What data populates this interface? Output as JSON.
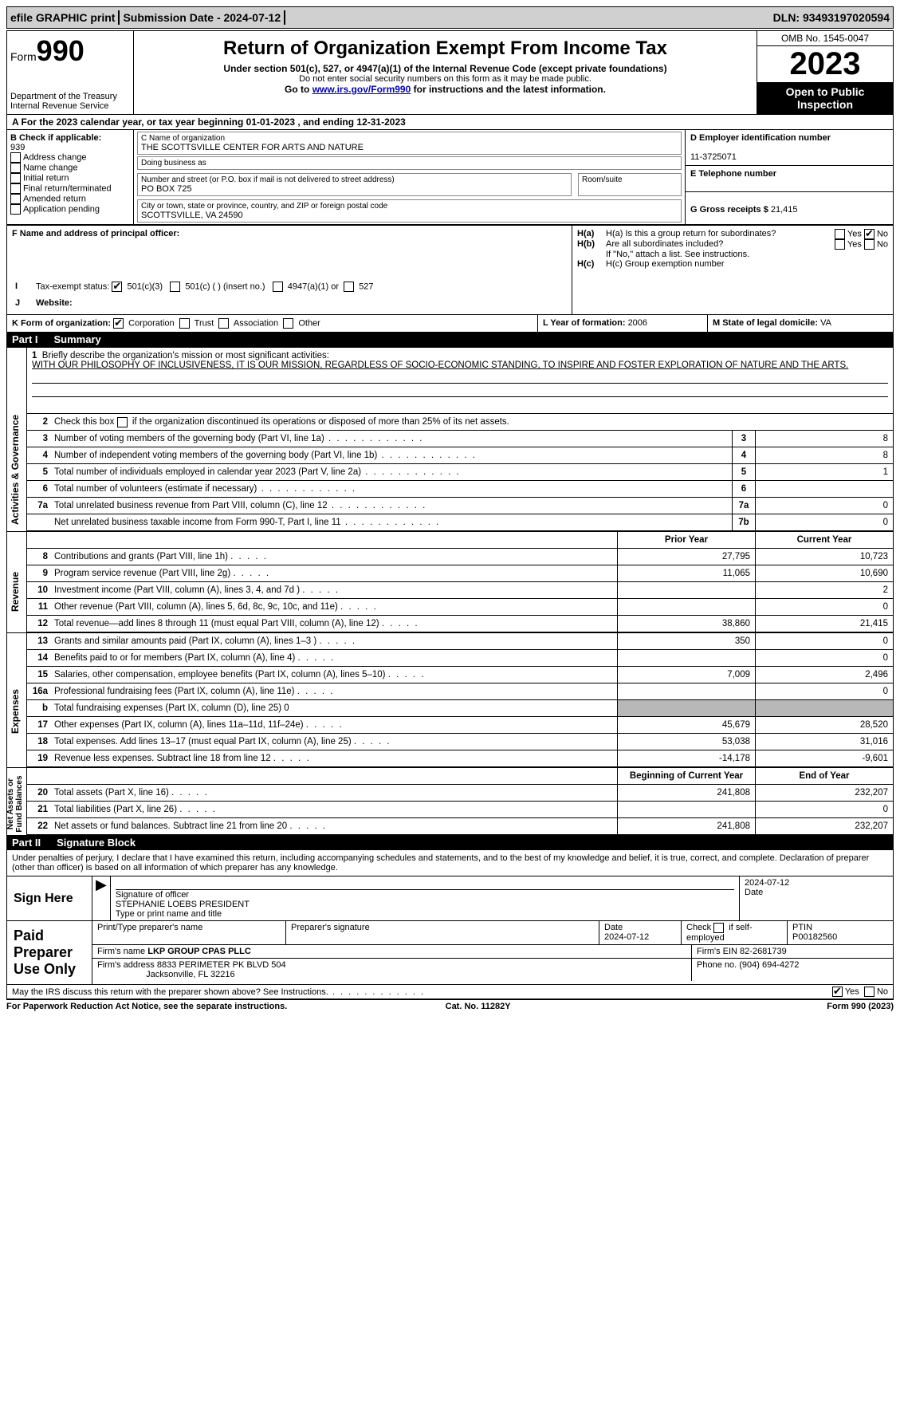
{
  "topbar": {
    "efile": "efile GRAPHIC print",
    "submission": "Submission Date - 2024-07-12",
    "dln": "DLN: 93493197020594"
  },
  "header": {
    "form_word": "Form",
    "form_num": "990",
    "dept": "Department of the Treasury\nInternal Revenue Service",
    "title": "Return of Organization Exempt From Income Tax",
    "subtitle": "Under section 501(c), 527, or 4947(a)(1) of the Internal Revenue Code (except private foundations)",
    "warn": "Do not enter social security numbers on this form as it may be made public.",
    "goto_pre": "Go to ",
    "goto_link": "www.irs.gov/Form990",
    "goto_post": " for instructions and the latest information.",
    "omb": "OMB No. 1545-0047",
    "year": "2023",
    "open": "Open to Public Inspection"
  },
  "row_a": {
    "pre": "A For the 2023 calendar year, or tax year beginning ",
    "begin": "01-01-2023",
    "mid": " , and ending ",
    "end": "12-31-2023"
  },
  "col_b": {
    "title": "B Check if applicable:",
    "items": [
      "Address change",
      "Name change",
      "Initial return",
      "Final return/terminated",
      "Amended return",
      "Application pending"
    ]
  },
  "org": {
    "name_lbl": "C Name of organization",
    "name": "THE SCOTTSVILLE CENTER FOR ARTS AND NATURE",
    "dba_lbl": "Doing business as",
    "dba": "",
    "addr_lbl": "Number and street (or P.O. box if mail is not delivered to street address)",
    "addr": "PO BOX 725",
    "room_lbl": "Room/suite",
    "room": "",
    "city_lbl": "City or town, state or province, country, and ZIP or foreign postal code",
    "city": "SCOTTSVILLE, VA  24590"
  },
  "right": {
    "d_lbl": "D Employer identification number",
    "d_val": "11-3725071",
    "e_lbl": "E Telephone number",
    "e_val": "",
    "g_lbl": "G Gross receipts $ ",
    "g_val": "21,415"
  },
  "row_f": {
    "f_lbl": "F  Name and address of principal officer:",
    "ha": "H(a)  Is this a group return for subordinates?",
    "hb": "H(b)  Are all subordinates included?",
    "hb_note": "If \"No,\" attach a list. See instructions.",
    "hc": "H(c)  Group exemption number ",
    "yes": "Yes",
    "no": "No"
  },
  "row_i": {
    "lbl": "Tax-exempt status:",
    "o1": "501(c)(3)",
    "o2": "501(c) (   ) (insert no.)",
    "o3": "4947(a)(1) or",
    "o4": "527"
  },
  "row_j": {
    "lbl": "Website: "
  },
  "row_klm": {
    "k_lbl": "K Form of organization:",
    "k_opts": [
      "Corporation",
      "Trust",
      "Association",
      "Other"
    ],
    "l_lbl": "L Year of formation: ",
    "l_val": "2006",
    "m_lbl": "M State of legal domicile: ",
    "m_val": "VA"
  },
  "part1": {
    "num": "Part I",
    "title": "Summary"
  },
  "vtabs": {
    "gov": "Activities & Governance",
    "rev": "Revenue",
    "exp": "Expenses",
    "net": "Net Assets or\nFund Balances"
  },
  "summary": {
    "l1_lbl": "Briefly describe the organization's mission or most significant activities:",
    "l1_text": "WITH OUR PHILOSOPHY OF INCLUSIVENESS, IT IS OUR MISSION, REGARDLESS OF SOCIO-ECONOMIC STANDING, TO INSPIRE AND FOSTER EXPLORATION OF NATURE AND THE ARTS.",
    "l2": "Check this box          if the organization discontinued its operations or disposed of more than 25% of its net assets.",
    "rows_top": [
      {
        "n": "3",
        "t": "Number of voting members of the governing body (Part VI, line 1a)",
        "nb": "3",
        "v": "8"
      },
      {
        "n": "4",
        "t": "Number of independent voting members of the governing body (Part VI, line 1b)",
        "nb": "4",
        "v": "8"
      },
      {
        "n": "5",
        "t": "Total number of individuals employed in calendar year 2023 (Part V, line 2a)",
        "nb": "5",
        "v": "1"
      },
      {
        "n": "6",
        "t": "Total number of volunteers (estimate if necessary)",
        "nb": "6",
        "v": ""
      },
      {
        "n": "7a",
        "t": "Total unrelated business revenue from Part VIII, column (C), line 12",
        "nb": "7a",
        "v": "0"
      },
      {
        "n": "",
        "t": "Net unrelated business taxable income from Form 990-T, Part I, line 11",
        "nb": "7b",
        "v": "0"
      }
    ],
    "hdr_prior": "Prior Year",
    "hdr_curr": "Current Year",
    "rev_rows": [
      {
        "n": "8",
        "t": "Contributions and grants (Part VIII, line 1h)",
        "p": "27,795",
        "c": "10,723"
      },
      {
        "n": "9",
        "t": "Program service revenue (Part VIII, line 2g)",
        "p": "11,065",
        "c": "10,690"
      },
      {
        "n": "10",
        "t": "Investment income (Part VIII, column (A), lines 3, 4, and 7d )",
        "p": "",
        "c": "2"
      },
      {
        "n": "11",
        "t": "Other revenue (Part VIII, column (A), lines 5, 6d, 8c, 9c, 10c, and 11e)",
        "p": "",
        "c": "0"
      },
      {
        "n": "12",
        "t": "Total revenue—add lines 8 through 11 (must equal Part VIII, column (A), line 12)",
        "p": "38,860",
        "c": "21,415"
      }
    ],
    "exp_rows": [
      {
        "n": "13",
        "t": "Grants and similar amounts paid (Part IX, column (A), lines 1–3 )",
        "p": "350",
        "c": "0"
      },
      {
        "n": "14",
        "t": "Benefits paid to or for members (Part IX, column (A), line 4)",
        "p": "",
        "c": "0"
      },
      {
        "n": "15",
        "t": "Salaries, other compensation, employee benefits (Part IX, column (A), lines 5–10)",
        "p": "7,009",
        "c": "2,496"
      },
      {
        "n": "16a",
        "t": "Professional fundraising fees (Part IX, column (A), line 11e)",
        "p": "",
        "c": "0"
      },
      {
        "n": "b",
        "t": "Total fundraising expenses (Part IX, column (D), line 25) 0",
        "p": "grey",
        "c": "grey"
      },
      {
        "n": "17",
        "t": "Other expenses (Part IX, column (A), lines 11a–11d, 11f–24e)",
        "p": "45,679",
        "c": "28,520"
      },
      {
        "n": "18",
        "t": "Total expenses. Add lines 13–17 (must equal Part IX, column (A), line 25)",
        "p": "53,038",
        "c": "31,016"
      },
      {
        "n": "19",
        "t": "Revenue less expenses. Subtract line 18 from line 12",
        "p": "-14,178",
        "c": "-9,601"
      }
    ],
    "hdr_begin": "Beginning of Current Year",
    "hdr_end": "End of Year",
    "net_rows": [
      {
        "n": "20",
        "t": "Total assets (Part X, line 16)",
        "p": "241,808",
        "c": "232,207"
      },
      {
        "n": "21",
        "t": "Total liabilities (Part X, line 26)",
        "p": "",
        "c": "0"
      },
      {
        "n": "22",
        "t": "Net assets or fund balances. Subtract line 21 from line 20",
        "p": "241,808",
        "c": "232,207"
      }
    ]
  },
  "part2": {
    "num": "Part II",
    "title": "Signature Block"
  },
  "sig": {
    "declare": "Under penalties of perjury, I declare that I have examined this return, including accompanying schedules and statements, and to the best of my knowledge and belief, it is true, correct, and complete. Declaration of preparer (other than officer) is based on all information of which preparer has any knowledge.",
    "sign_here": "Sign Here",
    "paid": "Paid Preparer Use Only",
    "sig_officer_lbl": "Signature of officer",
    "date_lbl": "Date",
    "sig_officer_val": "STEPHANIE LOEBS PRESIDENT",
    "type_lbl": "Type or print name and title",
    "date1": "2024-07-12",
    "prep_name_lbl": "Print/Type preparer's name",
    "prep_sig_lbl": "Preparer's signature",
    "date2": "2024-07-12",
    "check_lbl": "Check         if self-employed",
    "ptin_lbl": "PTIN",
    "ptin": "P00182560",
    "firm_name_lbl": "Firm's name    ",
    "firm_name": "LKP GROUP CPAS PLLC",
    "firm_ein_lbl": "Firm's EIN  ",
    "firm_ein": "82-2681739",
    "firm_addr_lbl": "Firm's address ",
    "firm_addr": "8833 PERIMETER PK BLVD 504",
    "firm_city": "Jacksonville, FL  32216",
    "phone_lbl": "Phone no. ",
    "phone": "(904) 694-4272"
  },
  "discuss": {
    "text": "May the IRS discuss this return with the preparer shown above? See Instructions.",
    "yes": "Yes",
    "no": "No"
  },
  "footer": {
    "left": "For Paperwork Reduction Act Notice, see the separate instructions.",
    "mid": "Cat. No. 11282Y",
    "right": "Form 990 (2023)"
  }
}
